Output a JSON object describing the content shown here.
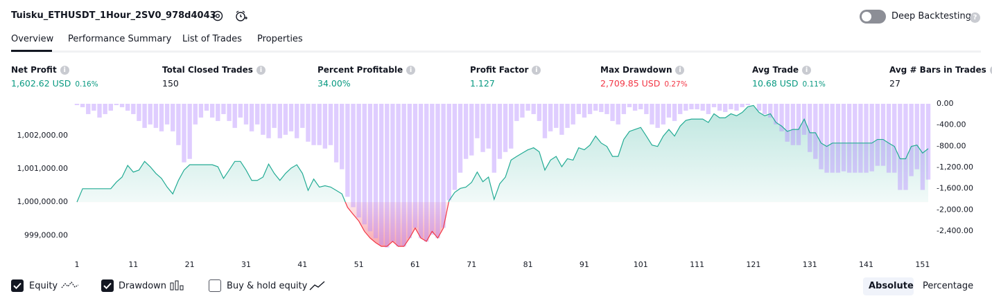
{
  "header": {
    "title": "Tuisku_ETHUSDT_1Hour_2SV0_978d4043",
    "deep_backtesting": "Deep Backtesting"
  },
  "tabs": [
    "Overview",
    "Performance Summary",
    "List of Trades",
    "Properties"
  ],
  "metrics": [
    {
      "label": "Net Profit",
      "value": "1,602.62 USD",
      "pct": "0.16%",
      "color": "#089981"
    },
    {
      "label": "Total Closed Trades",
      "value": "150",
      "color": "#131722"
    },
    {
      "label": "Percent Profitable",
      "value": "34.00%",
      "color": "#089981"
    },
    {
      "label": "Profit Factor",
      "value": "1.127",
      "color": "#089981"
    },
    {
      "label": "Max Drawdown",
      "value": "2,709.85 USD",
      "pct": "0.27%",
      "color": "#f23645"
    },
    {
      "label": "Avg Trade",
      "value": "10.68 USD",
      "pct": "0.11%",
      "color": "#089981"
    },
    {
      "label": "Avg # Bars in Trades",
      "value": "27",
      "color": "#131722"
    }
  ],
  "chart_data": {
    "type": "line",
    "x": [
      1,
      2,
      3,
      4,
      5,
      6,
      7,
      8,
      9,
      10,
      11,
      12,
      13,
      14,
      15,
      16,
      17,
      18,
      19,
      20,
      21,
      22,
      23,
      24,
      25,
      26,
      27,
      28,
      29,
      30,
      31,
      32,
      33,
      34,
      35,
      36,
      37,
      38,
      39,
      40,
      41,
      42,
      43,
      44,
      45,
      46,
      47,
      48,
      49,
      50,
      51,
      52,
      53,
      54,
      55,
      56,
      57,
      58,
      59,
      60,
      61,
      62,
      63,
      64,
      65,
      66,
      67,
      68,
      69,
      70,
      71,
      72,
      73,
      74,
      75,
      76,
      77,
      78,
      79,
      80,
      81,
      82,
      83,
      84,
      85,
      86,
      87,
      88,
      89,
      90,
      91,
      92,
      93,
      94,
      95,
      96,
      97,
      98,
      99,
      100,
      101,
      102,
      103,
      104,
      105,
      106,
      107,
      108,
      109,
      110,
      111,
      112,
      113,
      114,
      115,
      116,
      117,
      118,
      119,
      120,
      121,
      122,
      123,
      124,
      125,
      126,
      127,
      128,
      129,
      130,
      131,
      132,
      133,
      134,
      135,
      136,
      137,
      138,
      139,
      140,
      141,
      142,
      143,
      144,
      145,
      146,
      147,
      148,
      149,
      150,
      151,
      152
    ],
    "series": [
      {
        "name": "Equity",
        "type": "line",
        "checked": true,
        "color": "#22ab94",
        "negative_color": "#f23645",
        "values": [
          1000000,
          1000400,
          1000400,
          1000400,
          1000400,
          1000400,
          1000400,
          1000600,
          1000750,
          1001100,
          1000900,
          1000960,
          1001220,
          1001060,
          1000860,
          1000710,
          1000450,
          1000245,
          1000650,
          1000960,
          1001120,
          1001120,
          1001120,
          1001120,
          1001120,
          1001060,
          1000710,
          1000960,
          1001220,
          1001220,
          1000960,
          1000650,
          1000650,
          1000750,
          1001140,
          1000860,
          1000650,
          1000860,
          1001020,
          1001120,
          1000860,
          1000350,
          1000690,
          1000450,
          1000490,
          1000450,
          1000350,
          1000245,
          999840,
          999630,
          999430,
          999120,
          998920,
          998780,
          998670,
          998670,
          998820,
          998670,
          998670,
          998920,
          999220,
          998920,
          998820,
          999120,
          998920,
          999220,
          1000040,
          1000290,
          1000410,
          1000450,
          1000590,
          1000900,
          1000610,
          1000750,
          1000080,
          1000550,
          1000750,
          1001260,
          1001370,
          1001470,
          1001570,
          1001630,
          1001510,
          1000960,
          1001260,
          1001370,
          1001060,
          1001300,
          1001260,
          1001630,
          1001570,
          1001710,
          1001980,
          1001770,
          1001670,
          1001370,
          1001370,
          1001880,
          1002120,
          1002180,
          1002240,
          1001980,
          1001710,
          1001670,
          1001980,
          1002180,
          1001980,
          1002280,
          1002450,
          1002490,
          1002490,
          1002490,
          1002390,
          1002650,
          1002530,
          1002530,
          1002650,
          1002590,
          1002690,
          1002860,
          1002900,
          1002690,
          1002590,
          1002650,
          1002390,
          1002280,
          1002120,
          1002180,
          1002180,
          1002490,
          1002080,
          1002080,
          1001770,
          1001670,
          1001770,
          1001770,
          1001770,
          1001770,
          1001770,
          1001770,
          1001770,
          1001770,
          1001880,
          1001880,
          1001770,
          1001670,
          1001300,
          1001300,
          1001670,
          1001710,
          1001470,
          1001603
        ]
      },
      {
        "name": "Drawdown",
        "type": "bar",
        "axis": "y2",
        "checked": true,
        "color": "rgba(179,136,255,0.42)",
        "values": [
          -26,
          -65,
          -195,
          -130,
          -260,
          -195,
          -130,
          -26,
          -65,
          -130,
          -195,
          -325,
          -455,
          -390,
          -455,
          -520,
          -390,
          -520,
          -780,
          -1105,
          -1040,
          -390,
          -260,
          -130,
          -260,
          -325,
          -195,
          -325,
          -455,
          -260,
          -390,
          -520,
          -390,
          -585,
          -650,
          -455,
          -650,
          -585,
          -520,
          -650,
          -455,
          -715,
          -780,
          -780,
          -845,
          -780,
          -1105,
          -1235,
          -1755,
          -1950,
          -2145,
          -2275,
          -2405,
          -2535,
          -2665,
          -2710,
          -2600,
          -2691,
          -2691,
          -2535,
          -2340,
          -2535,
          -2600,
          -2470,
          -2535,
          -2340,
          -1820,
          -1625,
          -1300,
          -1040,
          -975,
          -650,
          -910,
          -845,
          -1300,
          -1040,
          -910,
          -845,
          -325,
          -260,
          -130,
          -195,
          -325,
          -650,
          -520,
          -455,
          -585,
          -455,
          -390,
          -195,
          -260,
          -195,
          -130,
          -156,
          -195,
          -325,
          -390,
          -195,
          -65,
          -130,
          -104,
          -195,
          -390,
          -455,
          -390,
          -260,
          -325,
          -195,
          -130,
          -104,
          -104,
          -130,
          -195,
          -65,
          -130,
          -156,
          -104,
          -130,
          -65,
          -26,
          0,
          -130,
          -195,
          -260,
          -390,
          -520,
          -715,
          -780,
          -780,
          -585,
          -910,
          -1040,
          -1235,
          -1300,
          -1300,
          -1300,
          -1274,
          -1300,
          -1300,
          -1300,
          -1300,
          -1274,
          -1170,
          -1170,
          -1300,
          -1300,
          -1625,
          -1625,
          -1365,
          -1235,
          -1625,
          -1430
        ]
      },
      {
        "name": "Buy & hold equity",
        "type": "line",
        "checked": false
      }
    ],
    "xlim": [
      1,
      152
    ],
    "xticks": [
      1,
      11,
      21,
      31,
      41,
      51,
      61,
      71,
      81,
      91,
      101,
      111,
      121,
      131,
      141,
      151
    ],
    "ylim": [
      998590,
      1002950
    ],
    "yticks": [
      {
        "value": 999000,
        "label": "999,000.00"
      },
      {
        "value": 1000000,
        "label": "1,000,000.00"
      },
      {
        "value": 1001000,
        "label": "1,001,000.00"
      },
      {
        "value": 1002000,
        "label": "1,002,000.00"
      }
    ],
    "y2lim": [
      -2740,
      0
    ],
    "y2ticks": [
      {
        "value": 0,
        "label": "0.00"
      },
      {
        "value": -400,
        "label": "-400.00"
      },
      {
        "value": -800,
        "label": "-800.00"
      },
      {
        "value": -1200,
        "label": "-1,200.00"
      },
      {
        "value": -1600,
        "label": "-1,600.00"
      },
      {
        "value": -2000,
        "label": "-2,000.00"
      },
      {
        "value": -2400,
        "label": "-2,400.00"
      }
    ]
  },
  "modes": [
    "Absolute",
    "Percentage"
  ]
}
